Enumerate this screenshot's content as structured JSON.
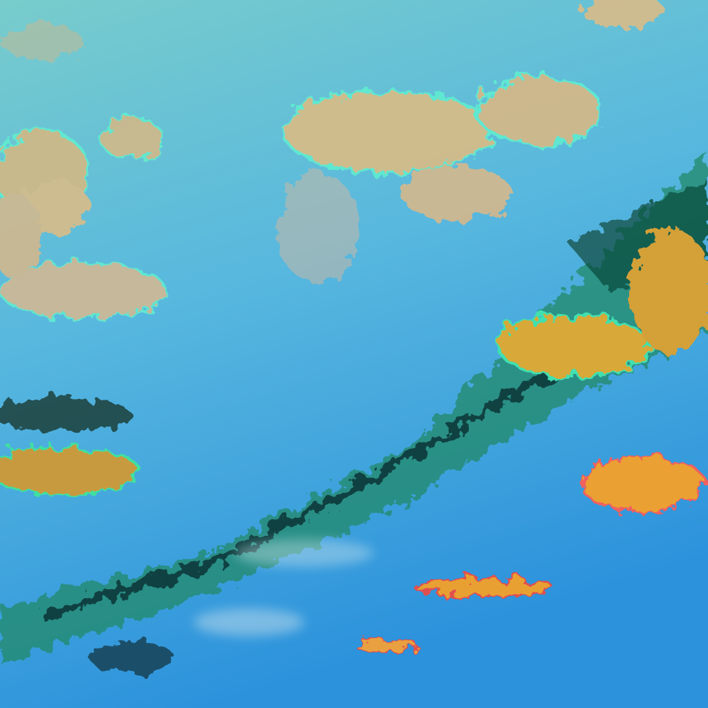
{
  "image": {
    "kind": "false-color satellite cloud imagery",
    "colors": {
      "upper_sky": "#6cc6d6",
      "lower_sky": "#2f96dc",
      "high_cloud_tan": "#e0b878",
      "low_cloud_orange": "#e8a030",
      "frontal_band_green": "#1f8a5a",
      "frontal_band_dark": "#0f3a3a",
      "cyan_edges": "#4ef0d0"
    }
  }
}
